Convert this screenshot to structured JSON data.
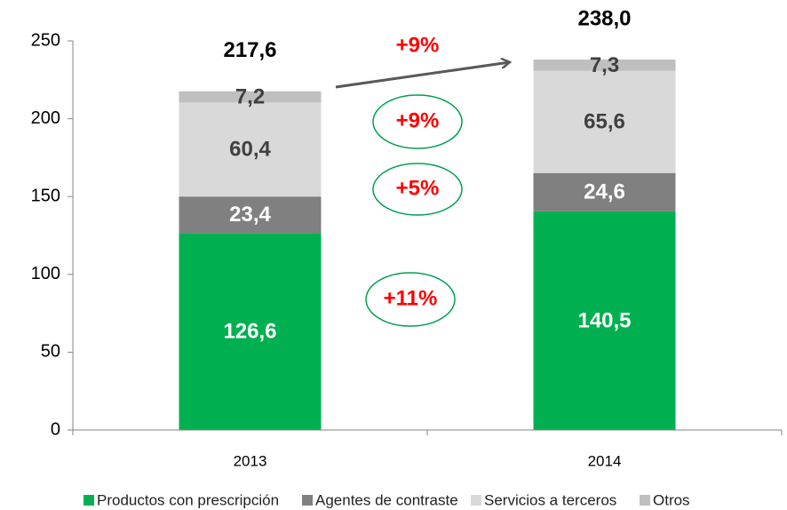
{
  "chart_data": {
    "type": "stacked_bar",
    "categories": [
      "2013",
      "2014"
    ],
    "series": [
      {
        "name": "Productos con prescripción",
        "color": "#00b050",
        "label_color": "#ffffff",
        "values": [
          126.6,
          140.5
        ],
        "value_labels": [
          "126,6",
          "140,5"
        ]
      },
      {
        "name": "Agentes de contraste",
        "color": "#808080",
        "label_color": "#ffffff",
        "values": [
          23.4,
          24.6
        ],
        "value_labels": [
          "23,4",
          "24,6"
        ]
      },
      {
        "name": "Servicios a terceros",
        "color": "#d9d9d9",
        "label_color": "#404040",
        "values": [
          60.4,
          65.6
        ],
        "value_labels": [
          "60,4",
          "65,6"
        ]
      },
      {
        "name": "Otros",
        "color": "#bfbfbf",
        "label_color": "#404040",
        "values": [
          7.2,
          7.3
        ],
        "value_labels": [
          "7,2",
          "7,3"
        ]
      }
    ],
    "totals": [
      217.6,
      238.0
    ],
    "total_labels": [
      "217,6",
      "238,0"
    ],
    "annotations": [
      "+9%",
      "+9%",
      "+5%",
      "+11%"
    ],
    "ylim": [
      0,
      250
    ],
    "yticks": [
      0,
      50,
      100,
      150,
      200,
      250
    ],
    "legend": "bottom"
  }
}
